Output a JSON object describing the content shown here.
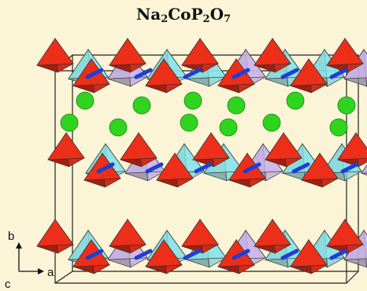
{
  "title": {
    "prefix": "Na",
    "sub1": "2",
    "mid": "CoP",
    "sub2": "2",
    "o": "O",
    "sub3": "7"
  },
  "axes": {
    "b": "b",
    "a": "a",
    "c": "c"
  },
  "colors": {
    "background": "#fcf4d6",
    "cobalt_tetrahedra": "#d42a16",
    "phosphorus_tetrahedra_cyan": "#7ecfd4",
    "phosphorus_tetrahedra_purple": "#b9a6d6",
    "sodium_atoms": "#2fd41f",
    "oxygen_bonds": "#1c3fd6"
  }
}
